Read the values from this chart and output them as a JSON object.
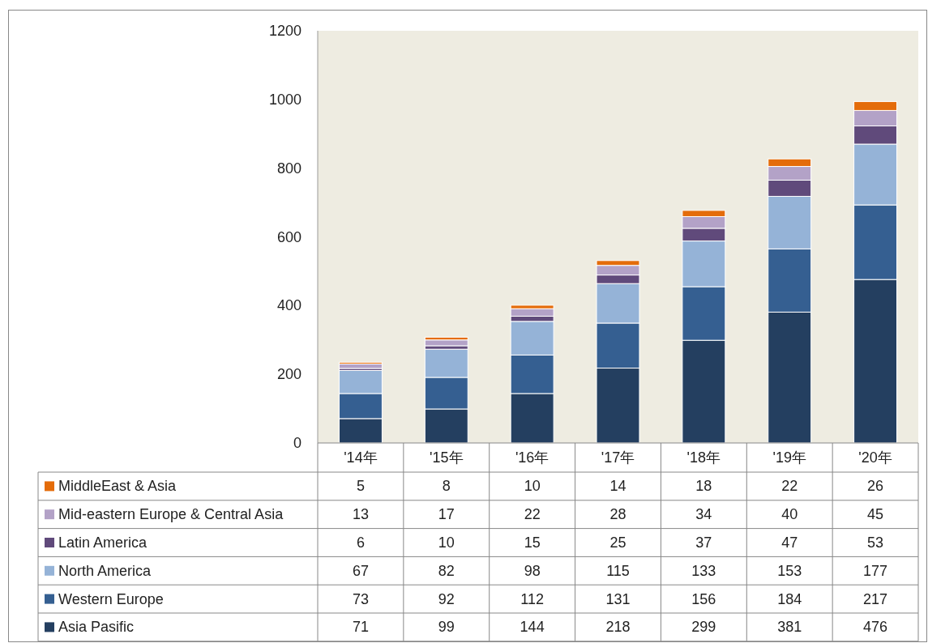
{
  "chart_data": {
    "type": "bar",
    "stacked": true,
    "categories": [
      "'14年",
      "'15年",
      "'16年",
      "'17年",
      "'18年",
      "'19年",
      "'20年"
    ],
    "series": [
      {
        "name": "Asia Pasific",
        "color": "#243f60",
        "values": [
          71,
          99,
          144,
          218,
          299,
          381,
          476
        ]
      },
      {
        "name": "Western Europe",
        "color": "#355f91",
        "values": [
          73,
          92,
          112,
          131,
          156,
          184,
          217
        ]
      },
      {
        "name": "North America",
        "color": "#95b3d7",
        "values": [
          67,
          82,
          98,
          115,
          133,
          153,
          177
        ]
      },
      {
        "name": "Latin America",
        "color": "#604a7b",
        "values": [
          6,
          10,
          15,
          25,
          37,
          47,
          53
        ]
      },
      {
        "name": "Mid-eastern Europe & Central Asia",
        "color": "#b3a2c7",
        "values": [
          13,
          17,
          22,
          28,
          34,
          40,
          45
        ]
      },
      {
        "name": "MiddleEast & Asia",
        "color": "#e46c0a",
        "values": [
          5,
          8,
          10,
          14,
          18,
          22,
          26
        ]
      }
    ],
    "ylim": [
      0,
      1200
    ],
    "yticks": [
      0,
      200,
      400,
      600,
      800,
      1000,
      1200
    ],
    "data_labels": true,
    "legend": "bottom"
  }
}
